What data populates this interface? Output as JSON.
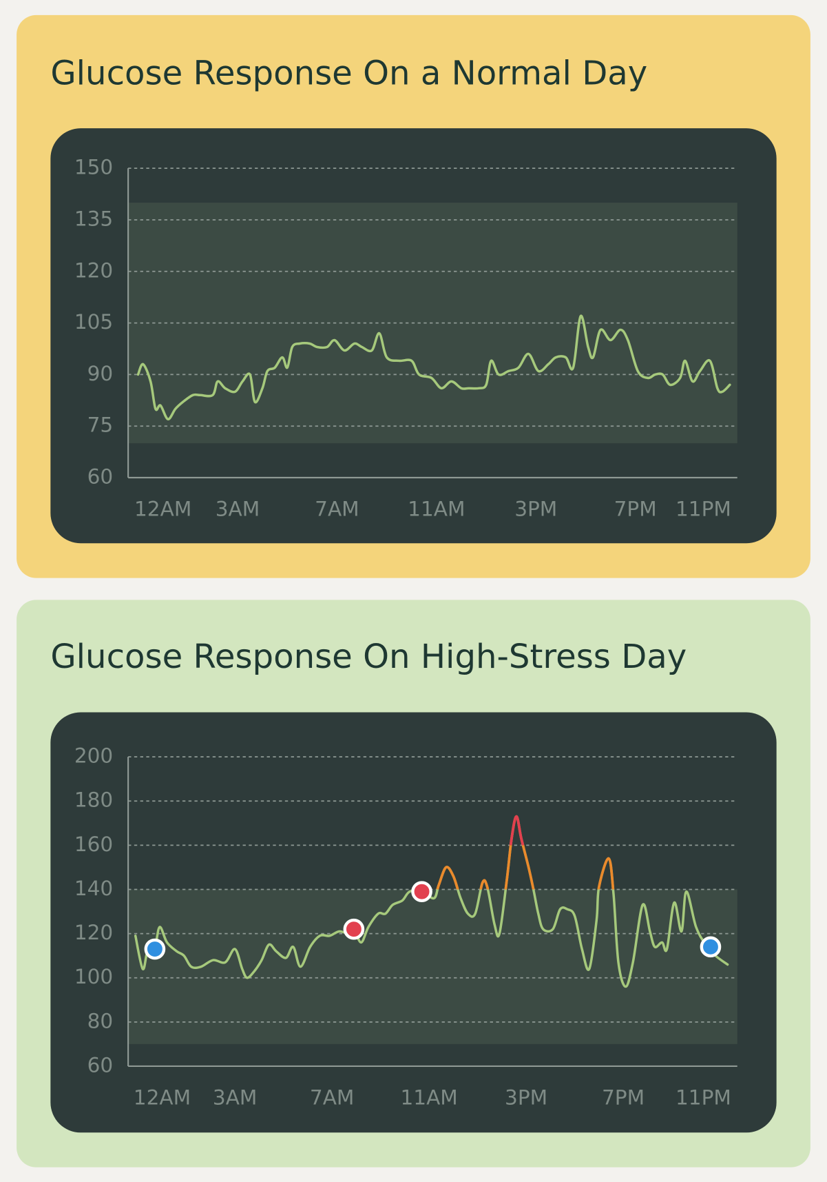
{
  "chart_data": [
    {
      "type": "line",
      "title": "Glucose Response On a Normal Day",
      "x": [
        -1.0,
        -0.8,
        -0.5,
        -0.3,
        -0.1,
        0.2,
        0.5,
        0.8,
        1.2,
        1.5,
        2.0,
        2.2,
        2.5,
        2.9,
        3.2,
        3.5,
        3.7,
        4.0,
        4.2,
        4.5,
        4.8,
        5.0,
        5.2,
        5.5,
        5.9,
        6.2,
        6.6,
        6.9,
        7.3,
        7.7,
        8.0,
        8.4,
        8.7,
        9.0,
        9.5,
        10.0,
        10.3,
        10.8,
        11.2,
        11.6,
        12.0,
        12.3,
        12.7,
        13.0,
        13.2,
        13.5,
        13.9,
        14.3,
        14.7,
        15.1,
        15.5,
        15.8,
        16.2,
        16.5,
        16.8,
        17.1,
        17.3,
        17.6,
        18.0,
        18.4,
        18.7,
        19.1,
        19.5,
        19.8,
        20.1,
        20.4,
        20.8,
        21.0,
        21.3,
        21.6,
        22.0,
        22.3,
        22.5,
        22.8
      ],
      "values": [
        90,
        93,
        88,
        80,
        81,
        77,
        80,
        82,
        84,
        84,
        84,
        88,
        86,
        85,
        88,
        90,
        82,
        86,
        91,
        92,
        95,
        92,
        98,
        99,
        99,
        98,
        98,
        100,
        97,
        99,
        98,
        97,
        102,
        95,
        94,
        94,
        90,
        89,
        86,
        88,
        86,
        86,
        86,
        87,
        94,
        90,
        91,
        92,
        96,
        91,
        93,
        95,
        95,
        92,
        107,
        98,
        95,
        103,
        100,
        103,
        100,
        91,
        89,
        90,
        90,
        87,
        89,
        94,
        88,
        91,
        94,
        86,
        85,
        87
      ],
      "color": "#a6c97c",
      "xlim": [
        -1.4,
        23.1
      ],
      "xticks": [
        {
          "value": 0,
          "label": "12AM"
        },
        {
          "value": 3,
          "label": "3AM"
        },
        {
          "value": 7,
          "label": "7AM"
        },
        {
          "value": 11,
          "label": "11AM"
        },
        {
          "value": 15,
          "label": "3PM"
        },
        {
          "value": 19,
          "label": "7PM"
        },
        {
          "value": 23,
          "label": "11PM"
        }
      ],
      "ylim": [
        60,
        150
      ],
      "yticks": [
        60,
        75,
        90,
        105,
        120,
        135,
        150
      ],
      "grid": true,
      "target_range": [
        70,
        140
      ],
      "band_color": "#3c4b44"
    },
    {
      "type": "line",
      "title": "Glucose Response On High-Stress Day",
      "x": [
        -1.1,
        -0.8,
        -0.6,
        -0.3,
        -0.1,
        0.2,
        0.6,
        0.9,
        1.2,
        1.6,
        2.1,
        2.6,
        3.0,
        3.3,
        3.5,
        3.8,
        4.1,
        4.4,
        4.7,
        5.1,
        5.4,
        5.7,
        6.1,
        6.5,
        6.9,
        7.3,
        7.7,
        7.9,
        8.2,
        8.5,
        8.9,
        9.2,
        9.5,
        9.9,
        10.2,
        10.7,
        11.2,
        11.4,
        11.7,
        12.0,
        12.3,
        12.6,
        12.9,
        13.2,
        13.4,
        13.7,
        13.9,
        14.2,
        14.4,
        14.6,
        14.8,
        15.1,
        15.3,
        15.5,
        15.7,
        16.1,
        16.4,
        16.7,
        17.0,
        17.3,
        17.6,
        17.9,
        18.0,
        18.4,
        18.6,
        18.8,
        19.1,
        19.4,
        19.8,
        20.1,
        20.3,
        20.6,
        20.8,
        21.1,
        21.4,
        21.6,
        22.0,
        22.4,
        22.8,
        23.3
      ],
      "values": [
        119,
        104,
        112,
        114,
        123,
        116,
        112,
        110,
        105,
        105,
        108,
        107,
        113,
        104,
        100,
        103,
        108,
        115,
        112,
        109,
        114,
        105,
        114,
        119,
        119,
        121,
        120,
        122,
        116,
        123,
        129,
        129,
        133,
        135,
        139,
        139,
        136,
        142,
        150,
        146,
        136,
        129,
        129,
        143,
        141,
        124,
        120,
        144,
        163,
        173,
        163,
        150,
        140,
        129,
        122,
        122,
        131,
        131,
        128,
        113,
        104,
        126,
        141,
        154,
        138,
        107,
        96,
        107,
        133,
        121,
        114,
        116,
        113,
        134,
        121,
        139,
        123,
        115,
        110,
        106
      ],
      "color": "#a6c97c",
      "color_bands": [
        {
          "from": 140,
          "color": "#ea8a2c"
        },
        {
          "from": 160,
          "color": "#e2404f"
        }
      ],
      "markers": [
        {
          "x": -0.3,
          "value": 113,
          "color": "#2f8fe0"
        },
        {
          "x": 7.9,
          "value": 122,
          "color": "#e2404f"
        },
        {
          "x": 10.7,
          "value": 139,
          "color": "#e2404f"
        },
        {
          "x": 22.6,
          "value": 114,
          "color": "#2f8fe0"
        }
      ],
      "xlim": [
        -1.4,
        23.7
      ],
      "xticks": [
        {
          "value": 0,
          "label": "12AM"
        },
        {
          "value": 3,
          "label": "3AM"
        },
        {
          "value": 7,
          "label": "7AM"
        },
        {
          "value": 11,
          "label": "11AM"
        },
        {
          "value": 15,
          "label": "3PM"
        },
        {
          "value": 19,
          "label": "7PM"
        },
        {
          "value": 23,
          "label": "11PM"
        }
      ],
      "ylim": [
        60,
        200
      ],
      "yticks": [
        60,
        80,
        100,
        120,
        140,
        160,
        180,
        200
      ],
      "grid": true,
      "target_range": [
        70,
        140
      ],
      "band_color": "#3c4b44"
    }
  ]
}
